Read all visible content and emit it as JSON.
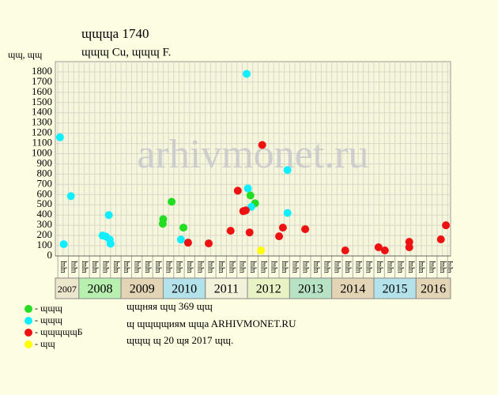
{
  "chart_data": {
    "type": "scatter",
    "title": "ɰɰɰa 1740",
    "subtitle": "ɰɰɰ Cu, ɰɰɰ F.",
    "y_label": "ɰɰ, ɰɰ",
    "watermark": "arhivmonet.ru",
    "xlim": [
      2007.44,
      2016.82
    ],
    "ylim": [
      0,
      1900
    ],
    "yticks": [
      0,
      100,
      200,
      300,
      400,
      500,
      600,
      700,
      800,
      900,
      1000,
      1100,
      1200,
      1300,
      1400,
      1500,
      1600,
      1700,
      1800
    ],
    "grid": true,
    "years": [
      {
        "label": "2007",
        "value": 2007,
        "color": "#ece6cc"
      },
      {
        "label": "2008",
        "value": 2008,
        "color": "#b8f0b0"
      },
      {
        "label": "2009",
        "value": 2009,
        "color": "#e2d4b4"
      },
      {
        "label": "2010",
        "value": 2010,
        "color": "#b4e2ea"
      },
      {
        "label": "2011",
        "value": 2011,
        "color": "#f2f2da"
      },
      {
        "label": "2012",
        "value": 2012,
        "color": "#e8f2c4"
      },
      {
        "label": "2013",
        "value": 2013,
        "color": "#b8e2c4"
      },
      {
        "label": "2014",
        "value": 2014,
        "color": "#e2d4b4"
      },
      {
        "label": "2015",
        "value": 2015,
        "color": "#b4e2ea"
      },
      {
        "label": "2016",
        "value": 2016,
        "color": "#e2d4b4"
      }
    ],
    "categories": [
      "ɰɰ",
      "ɰɰ",
      "ɰɰ",
      "ɰɰ",
      "ɰɰ",
      "ɰɰ",
      "ɰɰ",
      "ɰɰ",
      "ɰɰ",
      "ɰɰ",
      "ɰɰ",
      "ɰɰ",
      "ɰɰ",
      "ɰɰ",
      "ɰɰ",
      "ɰɰ",
      "ɰɰ",
      "ɰɰ",
      "ɰɰ",
      "ɰɰ",
      "ɰɰ",
      "ɰɰ",
      "ɰɰ",
      "ɰɰ",
      "ɰɰ",
      "ɰɰ",
      "ɰɰ",
      "ɰɰ",
      "ɰɰ",
      "ɰɰ",
      "ɰɰ",
      "ɰɰ",
      "ɰɰ",
      "ɰɰ",
      "ɰɰ",
      "ɰɰ",
      "ɰɰ",
      "ɰɰ"
    ],
    "series": [
      {
        "name": "- ɰɰɰ",
        "color": "#22dd22",
        "x": [
          2009.99,
          2010.0,
          2010.2,
          2010.48,
          2012.07,
          2012.18
        ],
        "values": [
          315,
          360,
          530,
          277,
          592,
          515
        ]
      },
      {
        "name": "- ɰɰɰ",
        "color": "#11eeff",
        "x": [
          2007.55,
          2007.64,
          2007.81,
          2008.56,
          2008.64,
          2008.73,
          2008.75,
          2008.71,
          2010.42,
          2011.98,
          2012.01,
          2012.09,
          2012.95,
          2012.95
        ],
        "values": [
          1160,
          115,
          585,
          200,
          190,
          160,
          120,
          400,
          160,
          1780,
          660,
          480,
          840,
          420
        ]
      },
      {
        "name": "- ɰɰɰɰɰБ",
        "color": "#ee1111",
        "x": [
          2010.59,
          2011.08,
          2011.6,
          2011.77,
          2011.9,
          2011.96,
          2012.05,
          2012.35,
          2012.75,
          2012.84,
          2013.37,
          2014.32,
          2015.11,
          2015.26,
          2015.84,
          2015.84,
          2016.59,
          2016.71
        ],
        "values": [
          130,
          123,
          246,
          638,
          438,
          446,
          230,
          1085,
          192,
          277,
          262,
          54,
          85,
          54,
          138,
          85,
          162,
          300
        ]
      },
      {
        "name": "- ɰɰ",
        "color": "#ffff00",
        "x": [
          2012.32
        ],
        "values": [
          54
        ]
      }
    ],
    "notes": [
      "ɰɰняя ɰɰ 369 ɰɰ",
      "ɰ ɰɰɰɰиям ɰɰa ARHIVMONET.RU",
      "ɰɰɰ ɰ 20 ɰя 2017 ɰɰ."
    ]
  }
}
